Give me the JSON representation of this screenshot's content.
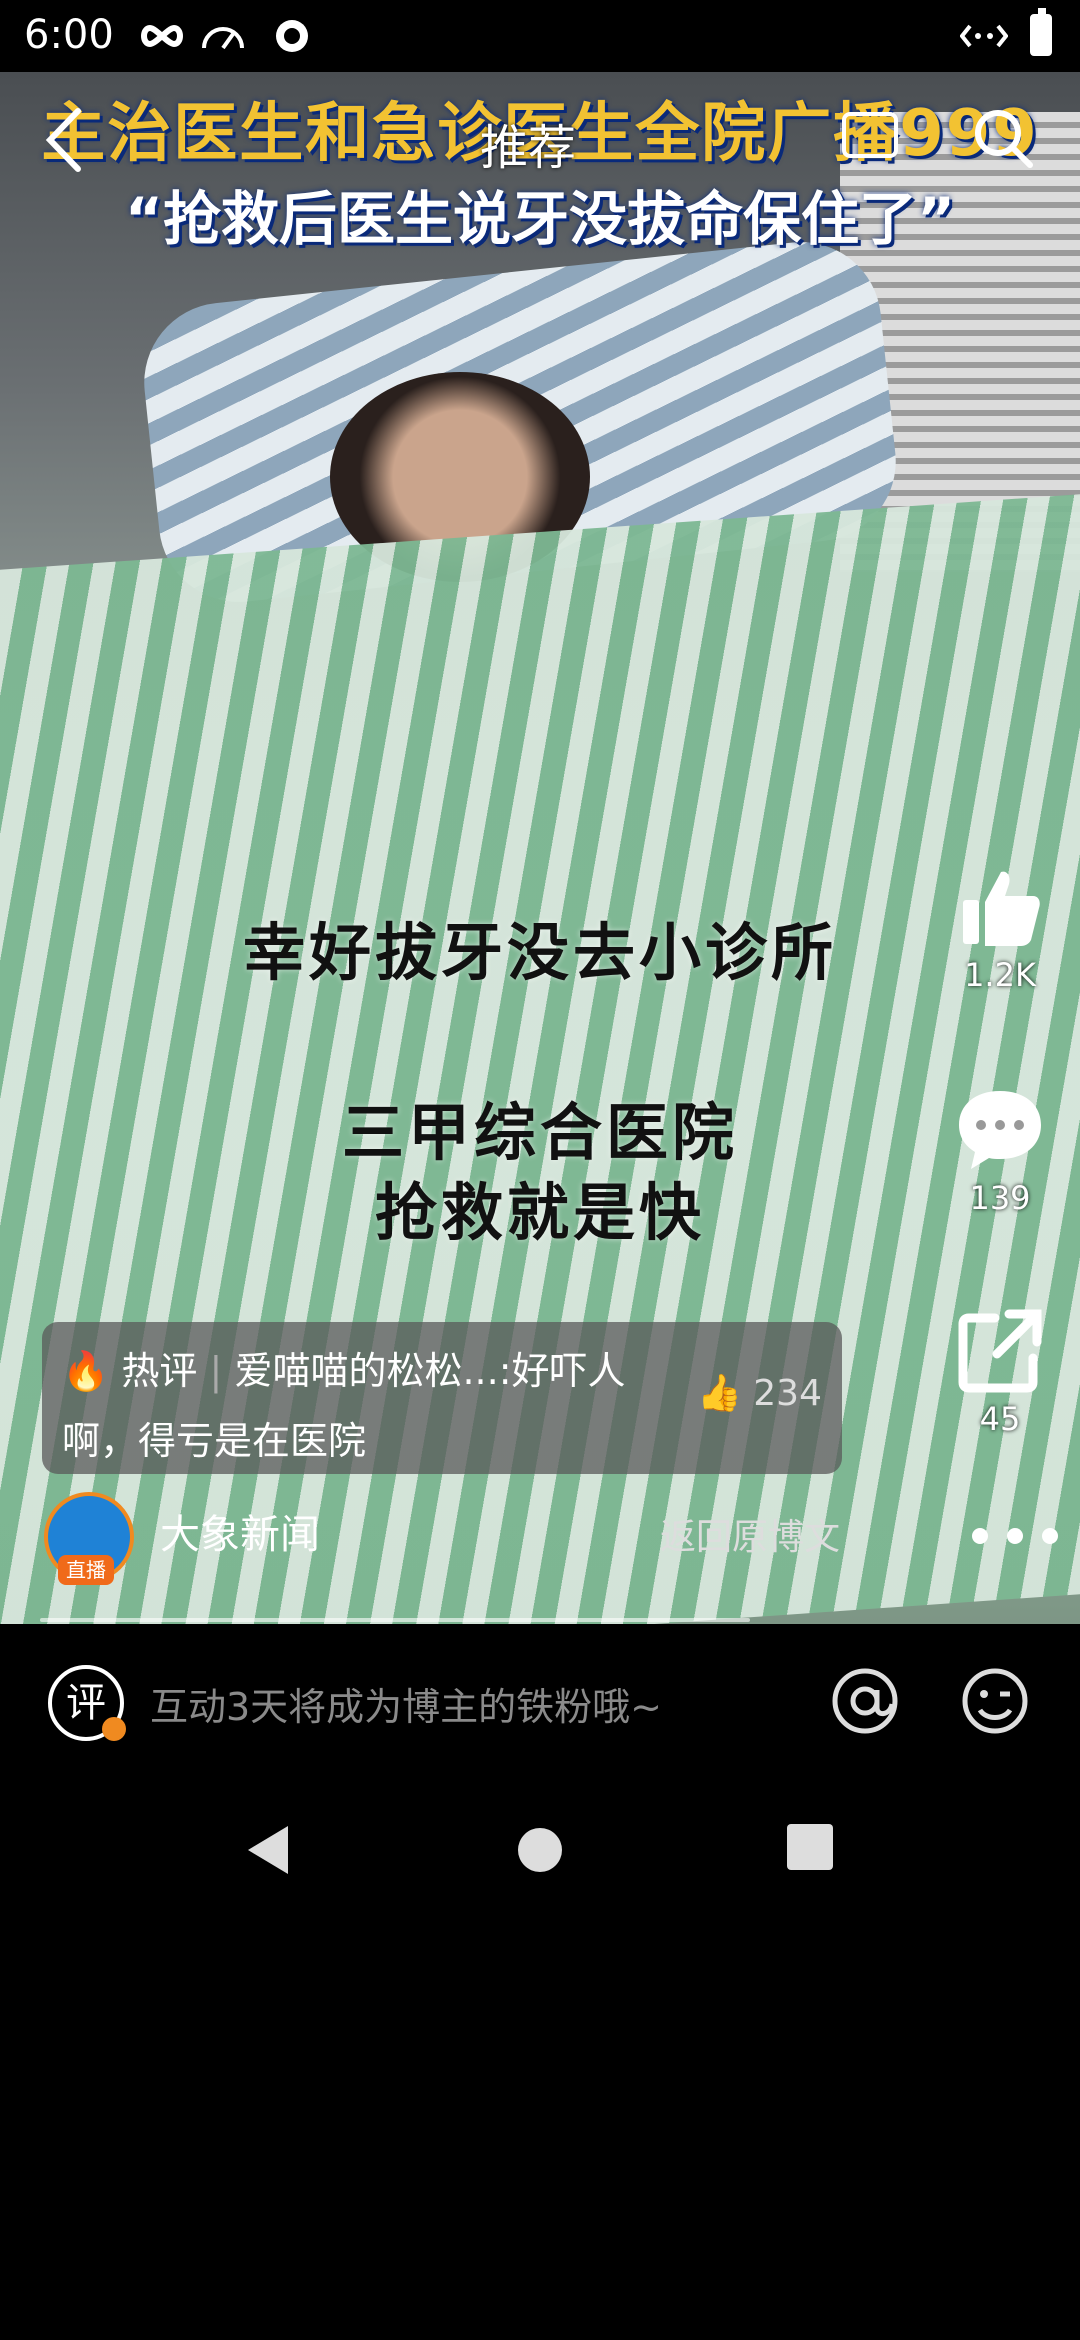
{
  "status_bar": {
    "time": "6:00"
  },
  "video": {
    "headline_1": "主治医生和急诊医生全院广播999",
    "headline_2": "“抢救后医生说牙没拔命保住了”",
    "overlay_1": "幸好拔牙没去小诊所",
    "overlay_2": "三甲综合医院",
    "overlay_3": "抢救就是快"
  },
  "top_nav": {
    "tab": "推荐"
  },
  "actions": {
    "likes": "1.2K",
    "comments": "139",
    "shares": "45"
  },
  "hot_comment": {
    "tag": "热评",
    "user": "爱喵喵的松松...",
    "text_1": ":好吓人",
    "text_2": "啊，得亏是在医院",
    "likes": "234"
  },
  "author": {
    "name": "大象新闻",
    "live_badge": "直播",
    "back_original": "返回原博文"
  },
  "comment_bar": {
    "placeholder": "互动3天将成为博主的铁粉哦~",
    "icon_char": "评"
  },
  "colors": {
    "accent_orange": "#f06a1a",
    "headline_yellow": "#f2c232",
    "avatar_blue": "#1f82d6"
  }
}
